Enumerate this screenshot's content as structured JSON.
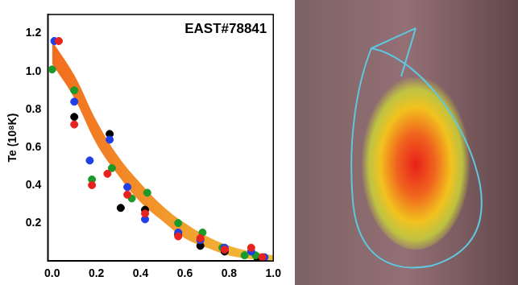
{
  "chart_data": {
    "type": "scatter",
    "title": "EAST#78841",
    "y_label": "Te (10⁸K)",
    "xlim": [
      -0.02,
      1.0
    ],
    "ylim": [
      0,
      1.3
    ],
    "xticks": [
      {
        "value": 0,
        "label": "0.0"
      },
      0.2,
      0.4,
      0.6,
      0.8,
      {
        "value": 1,
        "label": "1.0"
      }
    ],
    "yticks": [
      0.2,
      0.4,
      0.6,
      0.8,
      {
        "value": 1,
        "label": "1.0"
      },
      1.2
    ],
    "grid": false,
    "series": [
      {
        "type": "band",
        "colors": [
          "#f26b1d",
          "#f2c13a"
        ],
        "x": [
          0,
          0.1,
          0.2,
          0.3,
          0.4,
          0.5,
          0.6,
          0.7,
          0.8,
          0.9,
          1.0
        ],
        "upper": [
          1.16,
          0.98,
          0.74,
          0.55,
          0.41,
          0.29,
          0.2,
          0.13,
          0.08,
          0.05,
          0.03
        ],
        "lower": [
          1.04,
          0.86,
          0.62,
          0.45,
          0.31,
          0.21,
          0.12,
          0.07,
          0.03,
          0.01,
          0.0
        ]
      },
      {
        "color": "#e8231f",
        "marker": "circle",
        "x": [
          0.03,
          0.1,
          0.18,
          0.25,
          0.34,
          0.42,
          0.57,
          0.67,
          0.78,
          0.9,
          0.95
        ],
        "values": [
          1.16,
          0.72,
          0.4,
          0.46,
          0.35,
          0.25,
          0.13,
          0.12,
          0.06,
          0.07,
          0.02
        ]
      },
      {
        "color": "#1f3fe8",
        "marker": "circle",
        "x": [
          0.01,
          0.1,
          0.17,
          0.26,
          0.34,
          0.42,
          0.57,
          0.67,
          0.78,
          0.9,
          0.96
        ],
        "values": [
          1.16,
          0.84,
          0.53,
          0.64,
          0.39,
          0.22,
          0.15,
          0.11,
          0.07,
          0.05,
          0.02
        ]
      },
      {
        "color": "#1a9a2a",
        "marker": "circle",
        "x": [
          0.0,
          0.1,
          0.18,
          0.27,
          0.36,
          0.43,
          0.57,
          0.68,
          0.77,
          0.87,
          0.92
        ],
        "values": [
          1.01,
          0.9,
          0.43,
          0.49,
          0.33,
          0.36,
          0.2,
          0.15,
          0.07,
          0.03,
          0.03
        ]
      },
      {
        "color": "#000000",
        "marker": "circle",
        "x": [
          0.1,
          0.26,
          0.31,
          0.42,
          0.57,
          0.67,
          0.78,
          0.93
        ],
        "values": [
          0.76,
          0.67,
          0.28,
          0.27,
          0.14,
          0.08,
          0.05,
          0.01
        ]
      }
    ]
  }
}
